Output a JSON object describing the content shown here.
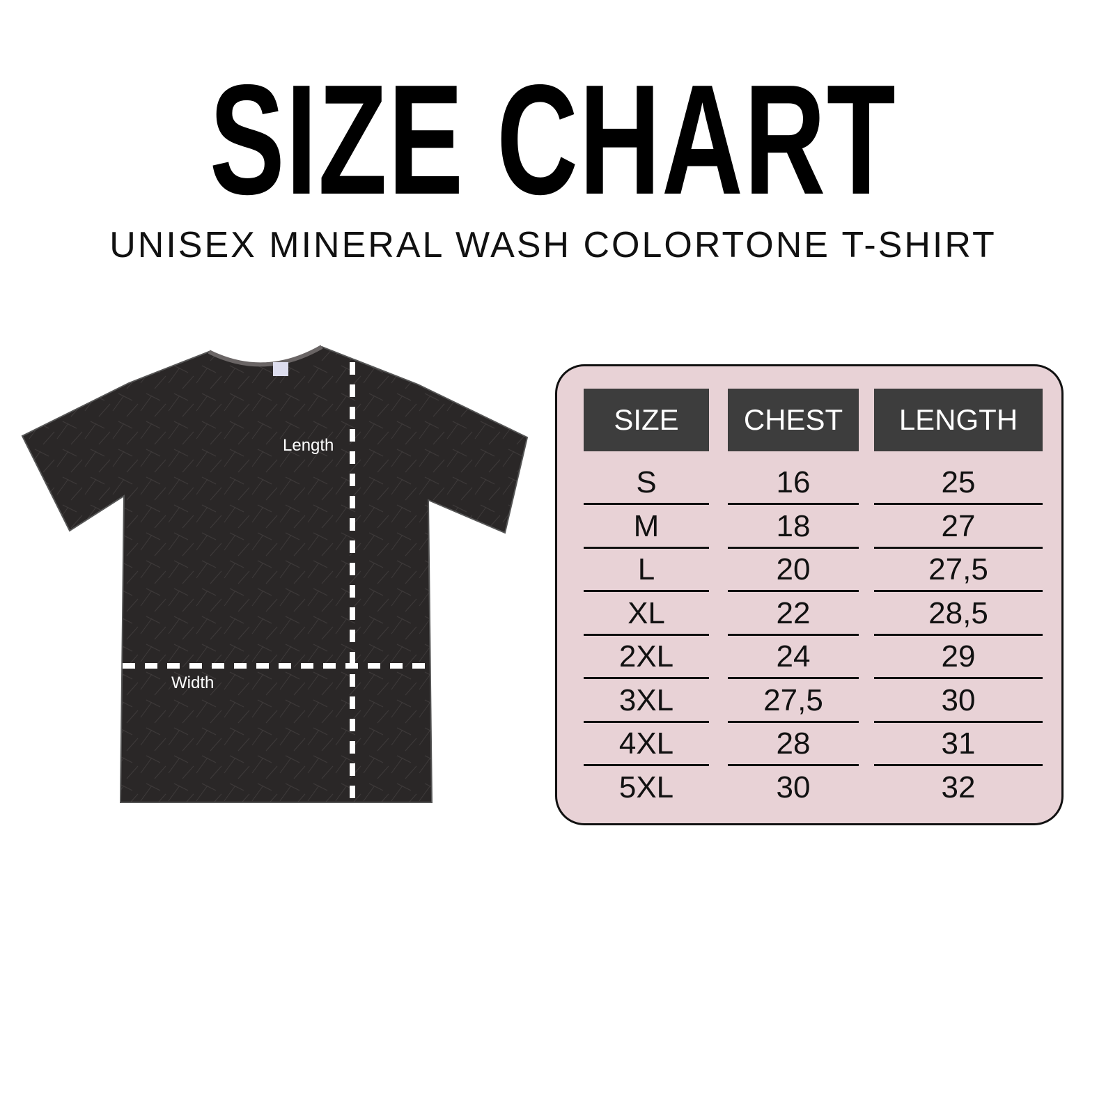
{
  "title": "SIZE CHART",
  "subtitle": "UNISEX MINERAL WASH COLORTONE T-SHIRT",
  "shirt": {
    "length_label": "Length",
    "width_label": "Width",
    "color": "#2a2727"
  },
  "table": {
    "headers": [
      "SIZE",
      "CHEST",
      "LENGTH"
    ],
    "rows": [
      [
        "S",
        "16",
        "25"
      ],
      [
        "M",
        "18",
        "27"
      ],
      [
        "L",
        "20",
        "27,5"
      ],
      [
        "XL",
        "22",
        "28,5"
      ],
      [
        "2XL",
        "24",
        "29"
      ],
      [
        "3XL",
        "27,5",
        "30"
      ],
      [
        "4XL",
        "28",
        "31"
      ],
      [
        "5XL",
        "30",
        "32"
      ]
    ],
    "panel_color": "#e8d2d6",
    "header_color": "#3d3d3d"
  }
}
